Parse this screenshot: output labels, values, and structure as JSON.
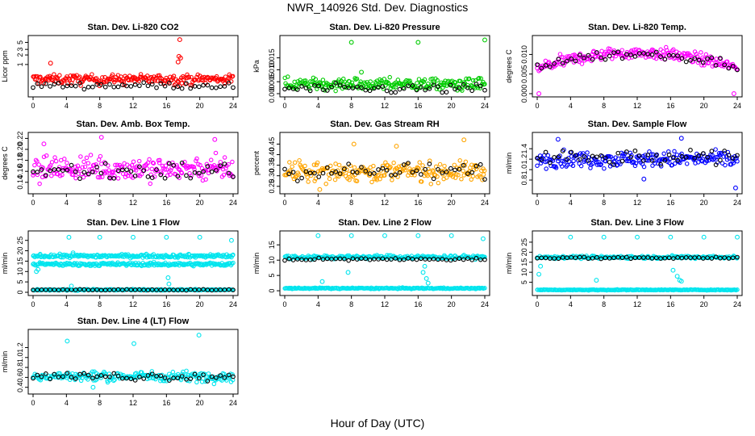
{
  "page": {
    "title": "NWR_140926  Std. Dev. Diagnostics",
    "xlabel": "Hour of Day (UTC)"
  },
  "colors": {
    "red": "#ff0000",
    "green": "#00cc00",
    "magenta": "#ff00ff",
    "orange": "#ffa500",
    "blue": "#0000ff",
    "cyan": "#00e5ee",
    "black": "#000000"
  },
  "chart_data": [
    {
      "type": "scatter",
      "title": "Stan. Dev. Li-820 CO2",
      "xlabel": "",
      "ylabel": "Licor ppm",
      "xlim": [
        0,
        24
      ],
      "ylim": [
        0,
        6.5
      ],
      "log_y": true,
      "ytick_values": [
        1,
        2,
        3,
        5
      ],
      "ytick_labels": [
        "1",
        "2",
        "3",
        "5"
      ],
      "xticks": [
        0,
        4,
        8,
        12,
        16,
        20,
        24
      ],
      "color": "red",
      "bands": [
        {
          "y": 0.35,
          "spread": 0.12
        }
      ],
      "outliers": [
        [
          17.6,
          6.1
        ],
        [
          17.5,
          1.8
        ],
        [
          17.7,
          1.6
        ],
        [
          17.4,
          1.2
        ],
        [
          2.1,
          1.1
        ]
      ],
      "black_band": {
        "y": 0.22,
        "spread": 0.05
      }
    },
    {
      "type": "scatter",
      "title": "Stan. Dev. Li-820 Pressure",
      "xlabel": "",
      "ylabel": "kPa",
      "xlim": [
        0,
        24
      ],
      "ylim": [
        0,
        0.023
      ],
      "log_y": false,
      "ytick_values": [
        0,
        0.005,
        0.01,
        0.015
      ],
      "ytick_labels": [
        "0.000",
        "0.005",
        "0.010",
        "0.015"
      ],
      "xticks": [
        0,
        4,
        8,
        12,
        16,
        20,
        24
      ],
      "color": "green",
      "bands": [
        {
          "y": 0.004,
          "spread": 0.0025
        }
      ],
      "outliers": [
        [
          8,
          0.0215
        ],
        [
          16,
          0.0215
        ],
        [
          24,
          0.0225
        ],
        [
          9.2,
          0.009
        ]
      ],
      "black_band": {
        "y": 0.002,
        "spread": 0.002
      }
    },
    {
      "type": "scatter",
      "title": "Stan. Dev. Li-820 Temp.",
      "xlabel": "",
      "ylabel": "degrees C",
      "xlim": [
        0,
        24
      ],
      "ylim": [
        0,
        0.014
      ],
      "log_y": false,
      "ytick_values": [
        0,
        0.005,
        0.01
      ],
      "ytick_labels": [
        "0.000",
        "0.005",
        "0.010"
      ],
      "xticks": [
        0,
        4,
        8,
        12,
        16,
        20,
        24
      ],
      "color": "magenta",
      "bands": [
        {
          "y": 0.009,
          "spread": 0.0015,
          "arch": 0.004
        }
      ],
      "outliers": [
        [
          0.2,
          0.0
        ],
        [
          23.6,
          0.0
        ]
      ],
      "black_band": {
        "y": 0.009,
        "spread": 0.0012,
        "arch": 0.003
      }
    },
    {
      "type": "scatter",
      "title": "Stan. Dev. Amb. Box Temp.",
      "xlabel": "",
      "ylabel": "degrees C",
      "xlim": [
        0,
        24
      ],
      "ylim": [
        0.125,
        0.225
      ],
      "log_y": false,
      "ytick_values": [
        0.14,
        0.16,
        0.18,
        0.2,
        0.22
      ],
      "ytick_labels": [
        "0.14",
        "0.16",
        "0.18",
        "0.20",
        "0.22"
      ],
      "xticks": [
        0,
        4,
        8,
        12,
        16,
        20,
        24
      ],
      "color": "magenta",
      "bands": [
        {
          "y": 0.165,
          "spread": 0.022
        }
      ],
      "outliers": [
        [
          1.3,
          0.21
        ],
        [
          8.2,
          0.222
        ],
        [
          21.8,
          0.218
        ]
      ],
      "black_band": {
        "y": 0.16,
        "spread": 0.018
      }
    },
    {
      "type": "scatter",
      "title": "Stan. Dev. Gas Stream RH",
      "xlabel": "",
      "ylabel": "percent",
      "xlim": [
        0,
        24
      ],
      "ylim": [
        0.23,
        0.49
      ],
      "log_y": false,
      "ytick_values": [
        0.25,
        0.3,
        0.35,
        0.4,
        0.45
      ],
      "ytick_labels": [
        "0.25",
        "0.30",
        "0.35",
        "0.40",
        "0.45"
      ],
      "xticks": [
        0,
        4,
        8,
        12,
        16,
        20,
        24
      ],
      "color": "orange",
      "bands": [
        {
          "y": 0.32,
          "spread": 0.045
        }
      ],
      "outliers": [
        [
          4.2,
          0.235
        ],
        [
          8.3,
          0.45
        ],
        [
          13.4,
          0.44
        ],
        [
          21.5,
          0.47
        ]
      ],
      "black_band": {
        "y": 0.32,
        "spread": 0.04
      }
    },
    {
      "type": "scatter",
      "title": "Stan. Dev. Sample Flow",
      "xlabel": "",
      "ylabel": "ml/min",
      "xlim": [
        0,
        24
      ],
      "ylim": [
        0.6,
        1.65
      ],
      "log_y": false,
      "ytick_values": [
        0.8,
        1.0,
        1.2,
        1.4
      ],
      "ytick_labels": [
        "0.8",
        "1.0",
        "1.2",
        "1.4"
      ],
      "xticks": [
        0,
        4,
        8,
        12,
        16,
        20,
        24
      ],
      "color": "blue",
      "bands": [
        {
          "y": 1.2,
          "spread": 0.15
        }
      ],
      "outliers": [
        [
          23.8,
          0.65
        ],
        [
          17.3,
          1.6
        ],
        [
          2.5,
          1.58
        ],
        [
          12.8,
          0.82
        ]
      ],
      "black_band": {
        "y": 1.22,
        "spread": 0.14
      }
    },
    {
      "type": "scatter",
      "title": "Stan. Dev. Line 1 Flow",
      "xlabel": "",
      "ylabel": "ml/min",
      "xlim": [
        0,
        24
      ],
      "ylim": [
        0,
        28
      ],
      "log_y": false,
      "ytick_values": [
        0,
        5,
        10,
        15,
        20,
        25
      ],
      "ytick_labels": [
        "0",
        "5",
        "10",
        "15",
        "20",
        "25"
      ],
      "xticks": [
        0,
        4,
        8,
        12,
        16,
        20,
        24
      ],
      "color": "cyan",
      "bands": [
        {
          "y": 17.5,
          "spread": 0.8
        },
        {
          "y": 13.5,
          "spread": 0.8
        },
        {
          "y": 1.2,
          "spread": 0.3
        }
      ],
      "outliers": [
        [
          4.3,
          26.5
        ],
        [
          8,
          26.5
        ],
        [
          12,
          26.5
        ],
        [
          16,
          26.5
        ],
        [
          20,
          26.5
        ],
        [
          23.8,
          25
        ],
        [
          4.8,
          19
        ],
        [
          4.6,
          3
        ],
        [
          0.4,
          10
        ],
        [
          0.6,
          11
        ],
        [
          16.2,
          7
        ],
        [
          16.3,
          4
        ]
      ],
      "black_band": {
        "y": 1.2,
        "spread": 0.2
      }
    },
    {
      "type": "scatter",
      "title": "Stan. Dev. Line 2 Flow",
      "xlabel": "",
      "ylabel": "ml/min",
      "xlim": [
        0,
        24
      ],
      "ylim": [
        -0.5,
        18.5
      ],
      "log_y": false,
      "ytick_values": [
        0,
        5,
        10,
        15
      ],
      "ytick_labels": [
        "0",
        "5",
        "10",
        "15"
      ],
      "xticks": [
        0,
        4,
        8,
        12,
        16,
        20,
        24
      ],
      "color": "cyan",
      "bands": [
        {
          "y": 11.0,
          "spread": 0.6
        },
        {
          "y": 0.8,
          "spread": 0.2
        }
      ],
      "outliers": [
        [
          4,
          18
        ],
        [
          8,
          18
        ],
        [
          12,
          18
        ],
        [
          16,
          18
        ],
        [
          20,
          18
        ],
        [
          23.8,
          17
        ],
        [
          4.5,
          3
        ],
        [
          7.6,
          6
        ],
        [
          16.6,
          6
        ],
        [
          17.0,
          4
        ],
        [
          17.2,
          2.5
        ],
        [
          16.8,
          8
        ]
      ],
      "black_band": {
        "y": 10.3,
        "spread": 0.4
      }
    },
    {
      "type": "scatter",
      "title": "Stan. Dev. Line 3 Flow",
      "xlabel": "",
      "ylabel": "ml/min",
      "xlim": [
        0,
        24
      ],
      "ylim": [
        0,
        29
      ],
      "log_y": false,
      "ytick_values": [
        5,
        10,
        15,
        20,
        25
      ],
      "ytick_labels": [
        "5",
        "10",
        "15",
        "20",
        "25"
      ],
      "xticks": [
        0,
        4,
        8,
        12,
        16,
        20,
        24
      ],
      "color": "cyan",
      "bands": [
        {
          "y": 17.5,
          "spread": 0.7
        },
        {
          "y": 1.2,
          "spread": 0.2
        }
      ],
      "outliers": [
        [
          4,
          27.5
        ],
        [
          8,
          27.5
        ],
        [
          12,
          27.5
        ],
        [
          16,
          27.5
        ],
        [
          20,
          27.5
        ],
        [
          24,
          27.5
        ],
        [
          0.2,
          9
        ],
        [
          0.4,
          13
        ],
        [
          7.1,
          6
        ],
        [
          16.3,
          11
        ],
        [
          16.8,
          8
        ],
        [
          17.1,
          6
        ],
        [
          17.3,
          5.5
        ]
      ],
      "black_band": {
        "y": 17.2,
        "spread": 0.5
      }
    },
    {
      "type": "scatter",
      "title": "Stan. Dev. Line 4 (LT) Flow",
      "xlabel": "",
      "ylabel": "ml/min",
      "xlim": [
        0,
        24
      ],
      "ylim": [
        0.33,
        1.5
      ],
      "log_y": false,
      "ytick_values": [
        0.4,
        0.6,
        0.8,
        1.0,
        1.2
      ],
      "ytick_labels": [
        "0.4",
        "0.6",
        "0.8",
        "1.0",
        "1.2"
      ],
      "xticks": [
        0,
        4,
        8,
        12,
        16,
        20,
        24
      ],
      "color": "cyan",
      "bands": [
        {
          "y": 0.62,
          "spread": 0.1
        }
      ],
      "outliers": [
        [
          4.1,
          1.33
        ],
        [
          12.1,
          1.28
        ],
        [
          19.9,
          1.45
        ],
        [
          7.2,
          0.4
        ]
      ],
      "black_band": {
        "y": 0.62,
        "spread": 0.08
      }
    }
  ]
}
